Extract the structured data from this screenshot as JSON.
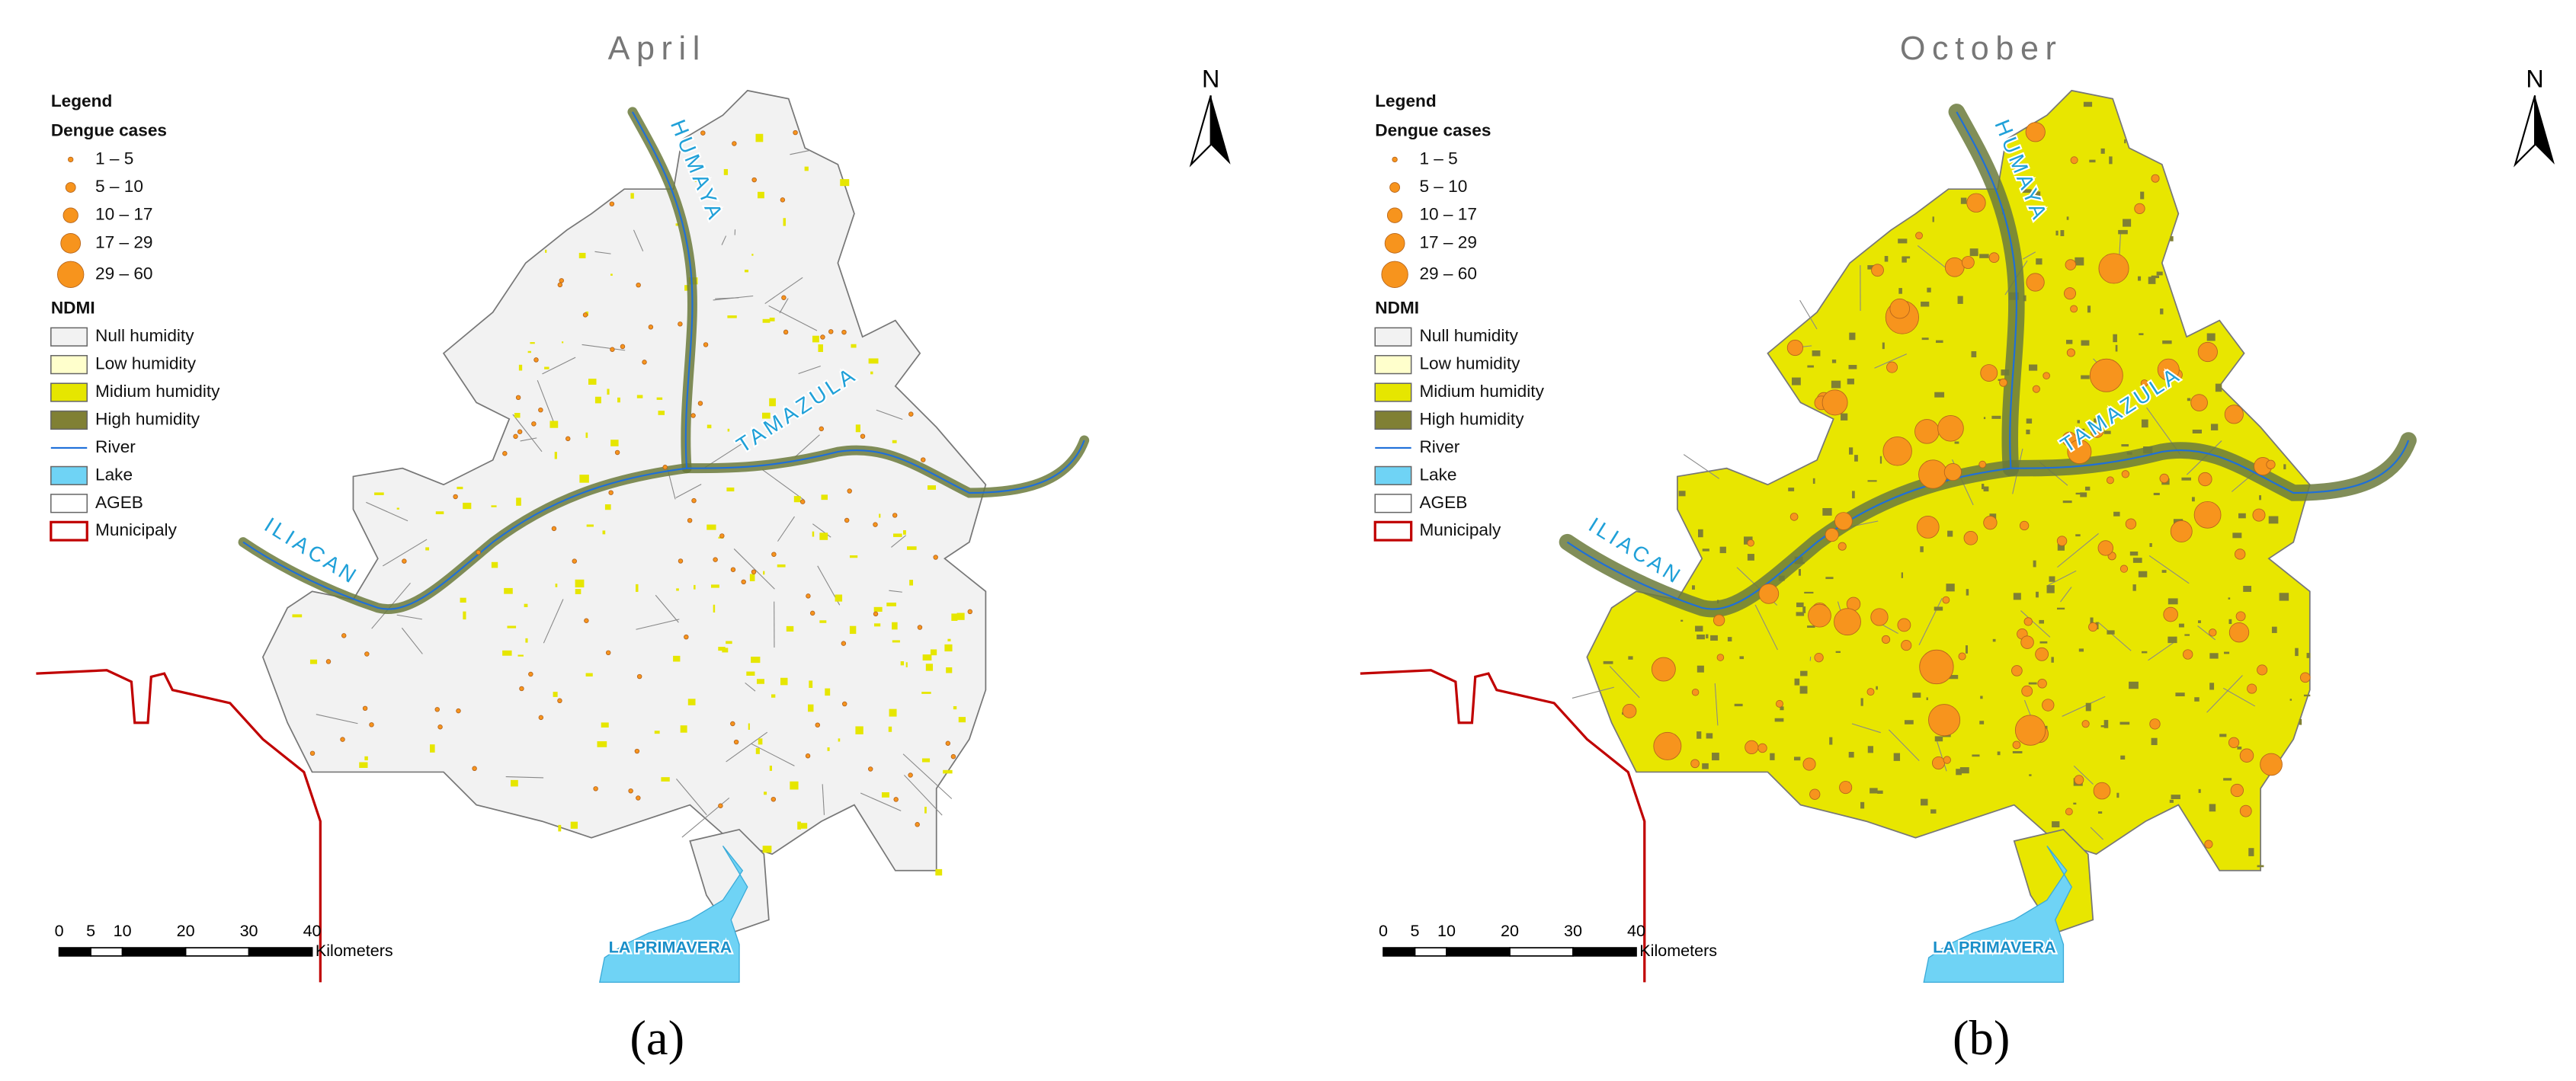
{
  "panels": [
    {
      "title": "April",
      "caption": "(a)"
    },
    {
      "title": "October",
      "caption": "(b)"
    }
  ],
  "legend": {
    "title": "Legend",
    "cases_title": "Dengue cases",
    "cases": [
      "1 – 5",
      "5 – 10",
      "10 – 17",
      "17 – 29",
      "29 – 60"
    ],
    "ndmi_title": "NDMI",
    "ndmi": [
      "Null humidity",
      "Low humidity",
      "Midium humidity",
      "High humidity",
      "River",
      "Lake",
      "AGEB",
      "Municipaly"
    ]
  },
  "north": "N",
  "scale": {
    "ticks": [
      0,
      5,
      10,
      20,
      30,
      40
    ],
    "unit": "Kilometers"
  },
  "labels": {
    "river_north": "HUMAYA",
    "river_east": "TAMAZULA",
    "river_west": "ILIACAN",
    "lake": "LA PRIMAVERA"
  }
}
